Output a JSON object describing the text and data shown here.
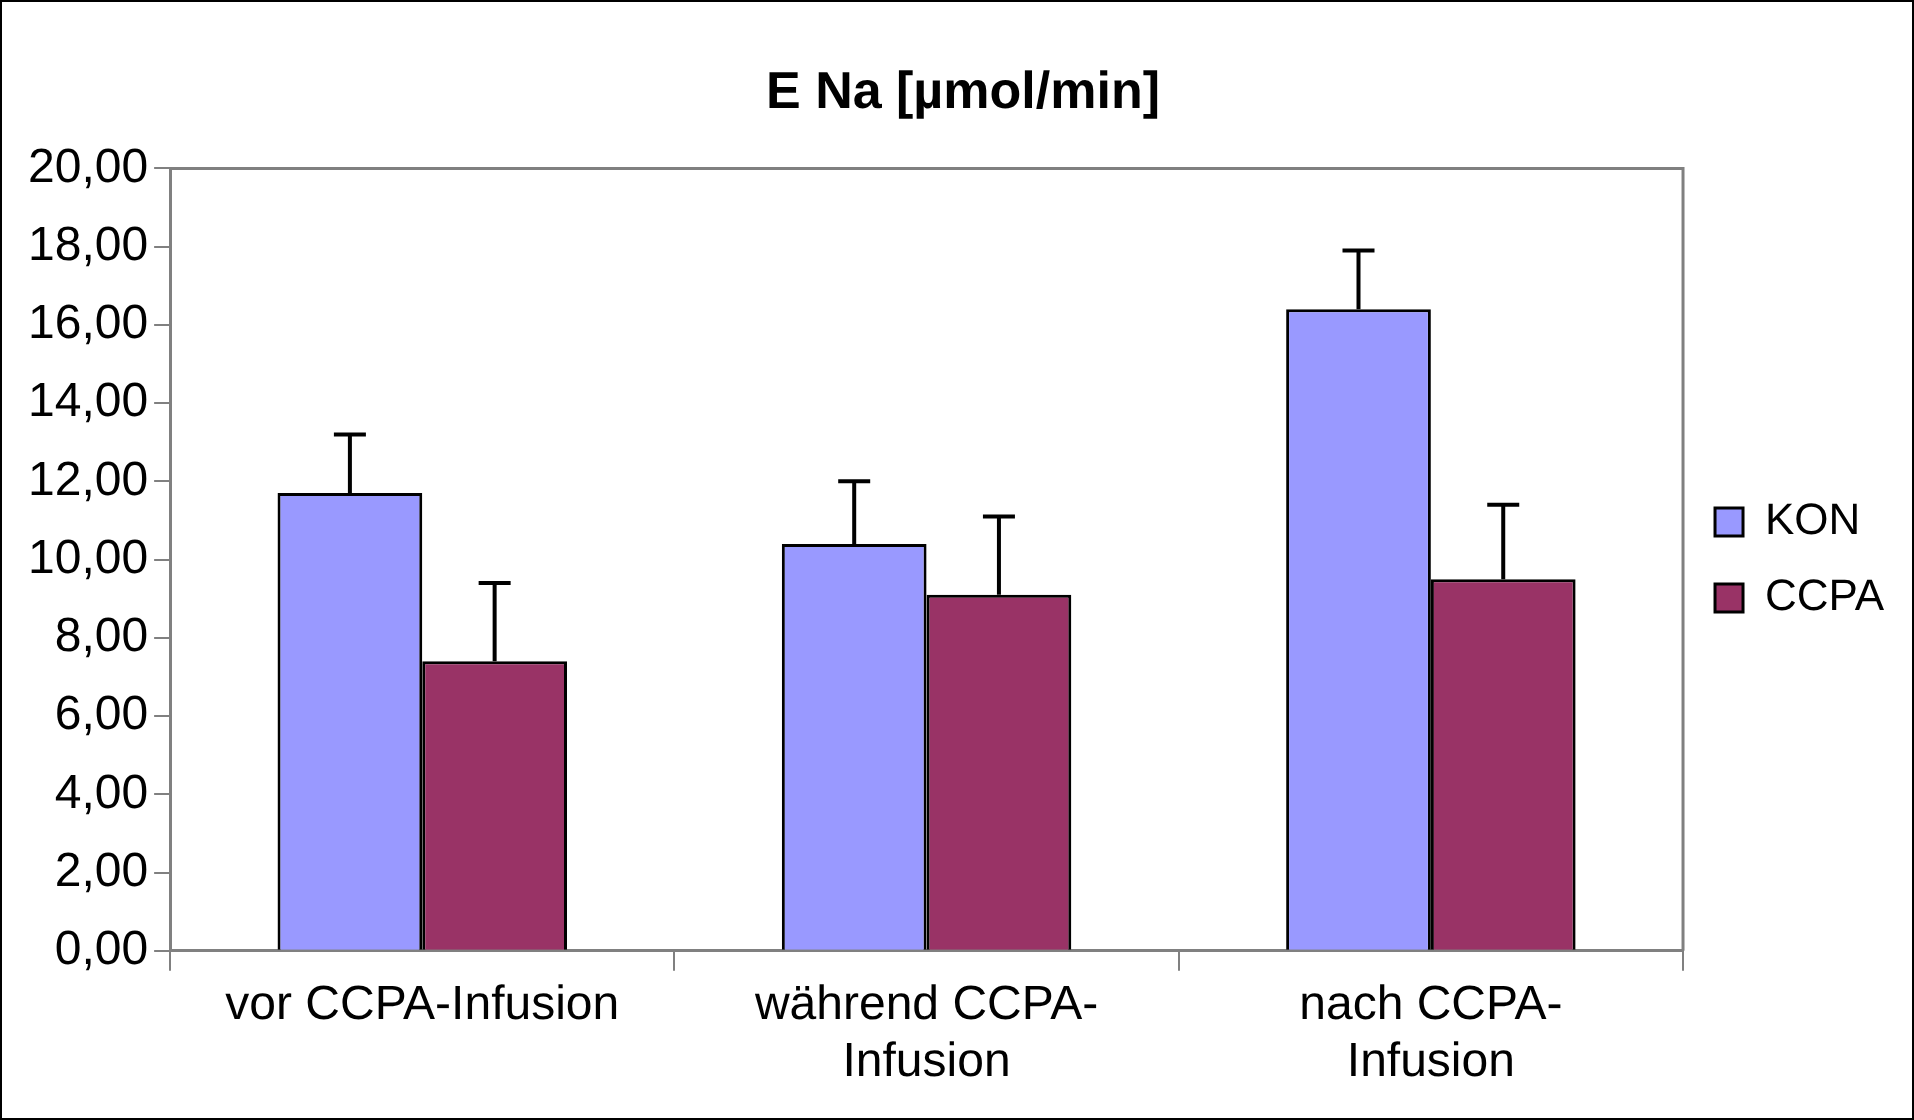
{
  "chart_data": {
    "type": "bar",
    "title": "E Na [µmol/min]",
    "categories": [
      "vor CCPA-Infusion",
      "während CCPA-Infusion",
      "nach CCPA-Infusion"
    ],
    "series": [
      {
        "name": "KON",
        "color": "#9999ff",
        "values": [
          11.7,
          10.4,
          16.4
        ],
        "errors": [
          [
            11.7,
            13.2
          ],
          [
            10.4,
            12.0
          ],
          [
            16.4,
            17.9
          ]
        ]
      },
      {
        "name": "CCPA",
        "color": "#993366",
        "values": [
          7.4,
          9.1,
          9.5
        ],
        "errors": [
          [
            7.4,
            9.4
          ],
          [
            9.1,
            11.1
          ],
          [
            9.5,
            11.4
          ]
        ]
      }
    ],
    "ylim": [
      0,
      20
    ],
    "yticks": [
      {
        "value": 0,
        "label": "0,00"
      },
      {
        "value": 2,
        "label": "2,00"
      },
      {
        "value": 4,
        "label": "4,00"
      },
      {
        "value": 6,
        "label": "6,00"
      },
      {
        "value": 8,
        "label": "8,00"
      },
      {
        "value": 10,
        "label": "10,00"
      },
      {
        "value": 12,
        "label": "12,00"
      },
      {
        "value": 14,
        "label": "14,00"
      },
      {
        "value": 16,
        "label": "16,00"
      },
      {
        "value": 18,
        "label": "18,00"
      },
      {
        "value": 20,
        "label": "20,00"
      }
    ],
    "grid": false,
    "legend": "right"
  }
}
